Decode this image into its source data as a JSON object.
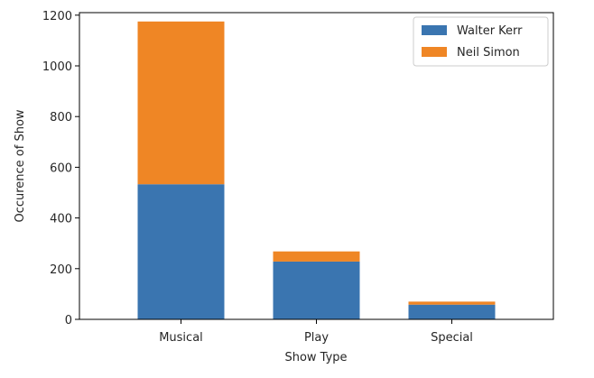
{
  "chart_data": {
    "type": "bar",
    "stacked": true,
    "categories": [
      "Musical",
      "Play",
      "Special"
    ],
    "series": [
      {
        "name": "Walter Kerr",
        "values": [
          533,
          228,
          58
        ],
        "color": "#3a75b0"
      },
      {
        "name": "Neil Simon",
        "values": [
          642,
          40,
          12
        ],
        "color": "#ef8625"
      }
    ],
    "title": "",
    "xlabel": "Show Type",
    "ylabel": "Occurence of Show",
    "ylim": [
      0,
      1210
    ],
    "yticks": [
      0,
      200,
      400,
      600,
      800,
      1000,
      1200
    ],
    "grid": false,
    "legend_position": "top-right"
  }
}
